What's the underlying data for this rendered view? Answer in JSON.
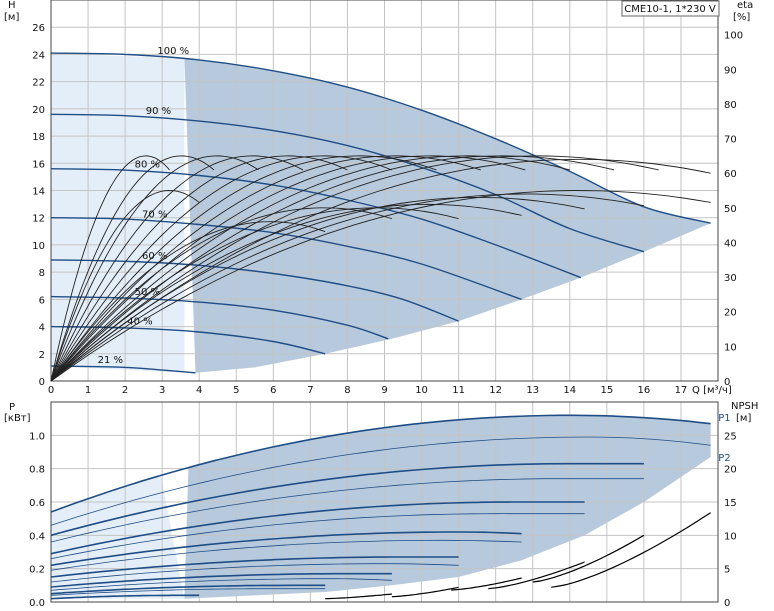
{
  "title_box": "CME10-1, 1*230 V",
  "colors": {
    "curve": "#1f4e86",
    "band": "#b7c9dc",
    "band_light": "#e4eef8",
    "grid": "#c4c4c4",
    "npsh": "#000000"
  },
  "chart_data": [
    {
      "type": "line",
      "panel": "top",
      "x_unit_label": "Q [м³/ч]",
      "xlim": [
        0,
        18
      ],
      "x_ticks": [
        0,
        1,
        2,
        3,
        4,
        5,
        6,
        7,
        8,
        9,
        10,
        11,
        12,
        13,
        14,
        15,
        16,
        17
      ],
      "ylabel_left": "H",
      "ylabel_left_unit": "[м]",
      "ylim_left": [
        0,
        28
      ],
      "y_ticks_left": [
        0,
        2,
        4,
        6,
        8,
        10,
        12,
        14,
        16,
        18,
        20,
        22,
        24,
        26
      ],
      "ylabel_right": "eta",
      "ylabel_right_unit": "[%]",
      "ylim_right": [
        0,
        110
      ],
      "y_ticks_right": [
        0,
        10,
        20,
        30,
        40,
        50,
        60,
        70,
        80,
        90,
        100
      ],
      "grid": true,
      "head_curves": [
        {
          "label": "100 %",
          "label_q": 3.3,
          "points": [
            [
              0,
              24.1
            ],
            [
              2,
              24.0
            ],
            [
              4,
              23.6
            ],
            [
              6,
              22.8
            ],
            [
              8,
              21.6
            ],
            [
              10,
              19.9
            ],
            [
              12,
              17.8
            ],
            [
              14,
              15.4
            ],
            [
              16,
              12.8
            ],
            [
              17.8,
              11.6
            ]
          ]
        },
        {
          "label": "90 %",
          "label_q": 2.9,
          "points": [
            [
              0,
              19.6
            ],
            [
              2,
              19.5
            ],
            [
              4,
              19.1
            ],
            [
              6,
              18.4
            ],
            [
              8,
              17.3
            ],
            [
              10,
              15.7
            ],
            [
              12,
              13.7
            ],
            [
              14,
              11.2
            ],
            [
              16,
              9.5
            ]
          ]
        },
        {
          "label": "80 %",
          "label_q": 2.6,
          "points": [
            [
              0,
              15.6
            ],
            [
              2,
              15.5
            ],
            [
              4,
              15.1
            ],
            [
              6,
              14.4
            ],
            [
              8,
              13.3
            ],
            [
              10,
              11.9
            ],
            [
              12,
              10.0
            ],
            [
              14.3,
              7.6
            ]
          ]
        },
        {
          "label": "70 %",
          "label_q": 2.8,
          "points": [
            [
              0,
              12.0
            ],
            [
              2,
              11.9
            ],
            [
              4,
              11.5
            ],
            [
              6,
              10.9
            ],
            [
              8,
              9.9
            ],
            [
              10,
              8.6
            ],
            [
              12.7,
              6.0
            ]
          ]
        },
        {
          "label": "60 %",
          "label_q": 2.8,
          "points": [
            [
              0,
              8.9
            ],
            [
              2,
              8.8
            ],
            [
              4,
              8.5
            ],
            [
              6,
              7.9
            ],
            [
              8,
              7.0
            ],
            [
              9.5,
              6.0
            ],
            [
              11,
              4.4
            ]
          ]
        },
        {
          "label": "50 %",
          "label_q": 2.6,
          "points": [
            [
              0,
              6.2
            ],
            [
              2,
              6.1
            ],
            [
              4,
              5.8
            ],
            [
              6,
              5.2
            ],
            [
              8,
              4.1
            ],
            [
              9.1,
              3.1
            ]
          ]
        },
        {
          "label": "40 %",
          "label_q": 2.4,
          "points": [
            [
              0,
              4.0
            ],
            [
              2,
              3.9
            ],
            [
              4,
              3.6
            ],
            [
              6,
              2.9
            ],
            [
              7.4,
              2.0
            ]
          ]
        },
        {
          "label": "21 %",
          "label_q": 1.6,
          "points": [
            [
              0,
              1.1
            ],
            [
              2,
              1.0
            ],
            [
              3,
              0.8
            ],
            [
              3.9,
              0.6
            ]
          ]
        }
      ],
      "efficiency_curves": [
        {
          "max_q": 3.2,
          "peak": 65
        },
        {
          "max_q": 4.4,
          "peak": 65
        },
        {
          "max_q": 5.6,
          "peak": 65
        },
        {
          "max_q": 6.8,
          "peak": 65
        },
        {
          "max_q": 8.0,
          "peak": 65
        },
        {
          "max_q": 9.2,
          "peak": 65
        },
        {
          "max_q": 10.4,
          "peak": 65
        },
        {
          "max_q": 11.6,
          "peak": 65
        },
        {
          "max_q": 12.8,
          "peak": 65
        },
        {
          "max_q": 14.0,
          "peak": 65
        },
        {
          "max_q": 15.2,
          "peak": 65
        },
        {
          "max_q": 16.4,
          "peak": 65
        },
        {
          "max_q": 17.8,
          "peak": 64
        }
      ],
      "efficiency_main": [
        {
          "max_q": 4.0,
          "peak": 55
        },
        {
          "max_q": 7.4,
          "peak": 46
        },
        {
          "max_q": 9.2,
          "peak": 50
        },
        {
          "max_q": 11.0,
          "peak": 50
        },
        {
          "max_q": 12.7,
          "peak": 51
        },
        {
          "max_q": 14.4,
          "peak": 53
        },
        {
          "max_q": 16.0,
          "peak": 54
        },
        {
          "max_q": 17.8,
          "peak": 55
        }
      ]
    },
    {
      "type": "line",
      "panel": "bottom",
      "xlim": [
        0,
        18
      ],
      "ylabel_left": "P",
      "ylabel_left_unit": "[кВт]",
      "ylim_left": [
        0,
        1.2
      ],
      "y_ticks_left": [
        "0.0",
        "0.2",
        "0.4",
        "0.6",
        "0.8",
        "1.0"
      ],
      "ylabel_right": "NPSH",
      "ylabel_right_unit": "[м]",
      "ylim_right": [
        0,
        30
      ],
      "y_ticks_right": [
        0,
        5,
        10,
        15,
        20,
        25
      ],
      "grid": true,
      "series_labels": [
        {
          "name": "P1",
          "label_q": 17.9,
          "label_y": 1.11
        },
        {
          "name": "P2",
          "label_q": 17.9,
          "label_y": 0.87
        }
      ],
      "p_curves": [
        {
          "start": 0.54,
          "end": 1.07,
          "max_q": 17.8,
          "peak_q": 14.0,
          "peak": 1.12,
          "bold": true
        },
        {
          "start": 0.46,
          "end": 0.94,
          "max_q": 17.8,
          "peak_q": 14.5,
          "peak": 0.99,
          "bold": false
        },
        {
          "start": 0.4,
          "end": 0.83,
          "max_q": 16.0,
          "peak_q": 14.0,
          "peak": 0.83,
          "bold": true
        },
        {
          "start": 0.36,
          "end": 0.74,
          "max_q": 16.0,
          "peak_q": 13.8,
          "peak": 0.74,
          "bold": false
        },
        {
          "start": 0.29,
          "end": 0.6,
          "max_q": 14.4,
          "peak_q": 12.5,
          "peak": 0.6,
          "bold": true
        },
        {
          "start": 0.26,
          "end": 0.53,
          "max_q": 14.4,
          "peak_q": 12.0,
          "peak": 0.53,
          "bold": false
        },
        {
          "start": 0.22,
          "end": 0.41,
          "max_q": 12.7,
          "peak_q": 11.0,
          "peak": 0.42,
          "bold": true
        },
        {
          "start": 0.19,
          "end": 0.36,
          "max_q": 12.7,
          "peak_q": 10.5,
          "peak": 0.37,
          "bold": false
        },
        {
          "start": 0.15,
          "end": 0.27,
          "max_q": 11.0,
          "peak_q": 9.5,
          "peak": 0.27,
          "bold": true
        },
        {
          "start": 0.12,
          "end": 0.22,
          "max_q": 11.0,
          "peak_q": 9.0,
          "peak": 0.23,
          "bold": false
        },
        {
          "start": 0.09,
          "end": 0.17,
          "max_q": 9.2,
          "peak_q": 8.0,
          "peak": 0.17,
          "bold": true
        },
        {
          "start": 0.07,
          "end": 0.13,
          "max_q": 9.2,
          "peak_q": 7.5,
          "peak": 0.14,
          "bold": false
        },
        {
          "start": 0.05,
          "end": 0.1,
          "max_q": 7.4,
          "peak_q": 6.5,
          "peak": 0.1,
          "bold": true
        },
        {
          "start": 0.04,
          "end": 0.08,
          "max_q": 7.4,
          "peak_q": 6.0,
          "peak": 0.08,
          "bold": false
        },
        {
          "start": 0.02,
          "end": 0.04,
          "max_q": 4.0,
          "peak_q": 3.5,
          "peak": 0.04,
          "bold": true
        }
      ],
      "npsh_curves": [
        {
          "q0": 7.4,
          "q1": 9.2,
          "y0": 0.5,
          "y1": 1.2
        },
        {
          "q0": 9.2,
          "q1": 11.0,
          "y0": 0.8,
          "y1": 2.2
        },
        {
          "q0": 10.8,
          "q1": 12.7,
          "y0": 1.8,
          "y1": 3.6
        },
        {
          "q0": 11.8,
          "q1": 14.4,
          "y0": 2.0,
          "y1": 6.0
        },
        {
          "q0": 13.0,
          "q1": 16.0,
          "y0": 3.0,
          "y1": 10.0
        },
        {
          "q0": 13.5,
          "q1": 17.8,
          "y0": 2.2,
          "y1": 13.4
        }
      ]
    }
  ]
}
